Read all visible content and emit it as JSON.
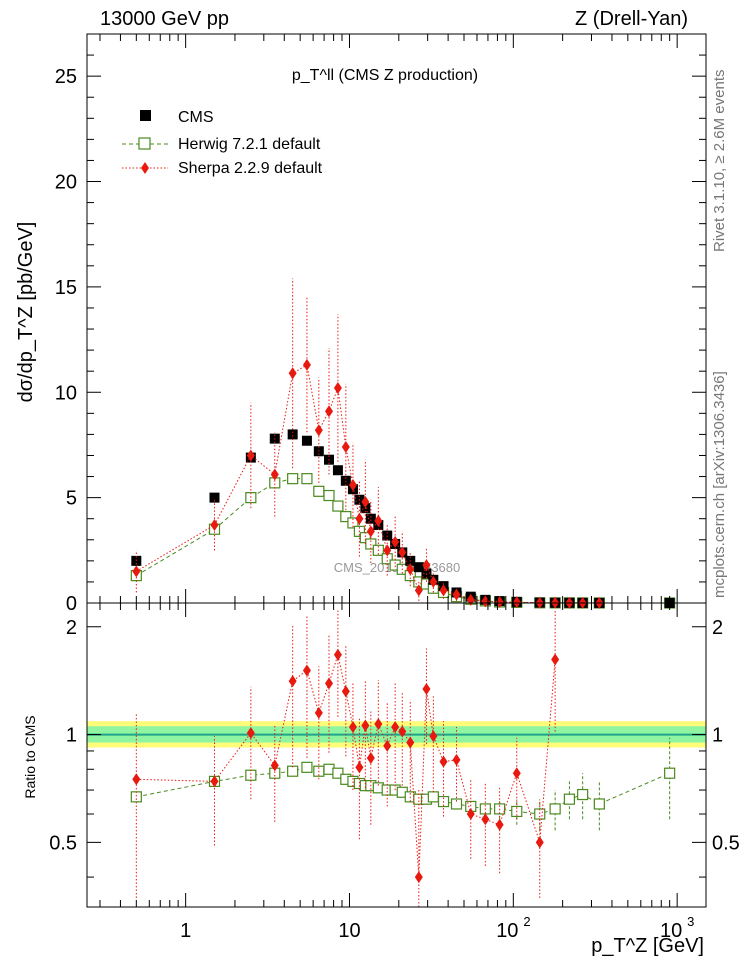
{
  "header": {
    "energy": "13000 GeV pp",
    "process": "Z (Drell-Yan)"
  },
  "side_text": {
    "rivet": "Rivet 3.1.10, ≥ 2.6M events",
    "mcplots": "mcplots.cern.ch [arXiv:1306.3436]"
  },
  "watermark": "CMS_2019_I1753680",
  "chart_data": [
    {
      "type": "scatter",
      "panel": "main",
      "title": "p_T^ll (CMS Z production)",
      "ylabel": "dσ/dp_T^Z [pb/GeV]",
      "xscale": "log",
      "xlim": [
        0.25,
        1500
      ],
      "ylim": [
        0,
        27
      ],
      "yticks": [
        0,
        5,
        10,
        15,
        20,
        25
      ],
      "legend_position": "top-left",
      "series": [
        {
          "name": "CMS",
          "marker": "filled-square",
          "color": "#000000",
          "x": [
            0.5,
            1.5,
            2.5,
            3.5,
            4.5,
            5.5,
            6.5,
            7.5,
            8.5,
            9.5,
            10.5,
            11.5,
            12.5,
            13.5,
            15,
            17,
            19,
            21,
            23.5,
            26.5,
            29.5,
            32.5,
            37.5,
            45,
            55,
            67.5,
            82.5,
            105,
            145,
            180,
            220,
            265,
            335,
            900
          ],
          "y": [
            2.0,
            5.0,
            6.9,
            7.8,
            8.0,
            7.7,
            7.2,
            6.8,
            6.3,
            5.8,
            5.4,
            4.9,
            4.5,
            4.0,
            3.7,
            3.2,
            2.8,
            2.4,
            2.0,
            1.7,
            1.4,
            1.1,
            0.8,
            0.5,
            0.3,
            0.15,
            0.09,
            0.05,
            0.02,
            0.01,
            0.01,
            0.005,
            0.003,
            0.001
          ]
        },
        {
          "name": "Herwig 7.2.1 default",
          "marker": "open-square",
          "line": "dashed",
          "color": "#4a8a1e",
          "x": [
            0.5,
            1.5,
            2.5,
            3.5,
            4.5,
            5.5,
            6.5,
            7.5,
            8.5,
            9.5,
            10.5,
            11.5,
            12.5,
            13.5,
            15,
            17,
            19,
            21,
            23.5,
            26.5,
            29.5,
            32.5,
            37.5,
            45,
            55,
            67.5,
            82.5,
            105,
            145,
            180,
            220,
            265,
            335,
            900
          ],
          "y": [
            1.3,
            3.5,
            5.0,
            5.7,
            5.9,
            5.9,
            5.3,
            5.1,
            4.6,
            4.1,
            3.8,
            3.4,
            3.1,
            2.8,
            2.5,
            2.1,
            1.8,
            1.6,
            1.3,
            1.0,
            0.9,
            0.7,
            0.5,
            0.3,
            0.18,
            0.1,
            0.05,
            0.03,
            0.01,
            0.006,
            0.005,
            0.003,
            0.002,
            0.0006
          ]
        },
        {
          "name": "Sherpa 2.2.9 default",
          "marker": "filled-diamond",
          "line": "dotted",
          "color": "#e8190f",
          "x": [
            0.5,
            1.5,
            2.5,
            3.5,
            4.5,
            5.5,
            6.5,
            7.5,
            8.5,
            9.5,
            10.5,
            11.5,
            12.5,
            13.5,
            15,
            17,
            19,
            21,
            23.5,
            26.5,
            29.5,
            32.5,
            37.5,
            45,
            55,
            67.5,
            82.5,
            105,
            145,
            180,
            220,
            265,
            335
          ],
          "y": [
            1.5,
            3.7,
            7.0,
            6.1,
            10.9,
            11.3,
            8.2,
            9.1,
            10.2,
            7.4,
            5.6,
            4.0,
            4.8,
            3.4,
            3.9,
            2.5,
            2.9,
            2.4,
            1.6,
            0.6,
            1.8,
            1.0,
            0.6,
            0.4,
            0.15,
            0.08,
            0.05,
            0.04,
            0.01,
            0.015,
            0.005,
            0.005,
            0.003
          ],
          "err": [
            1.0,
            1.2,
            2.5,
            2.0,
            4.5,
            3.2,
            2.5,
            3.0,
            3.5,
            3.0,
            2.0,
            1.8,
            2.0,
            1.5,
            1.6,
            1.2,
            1.2,
            1.0,
            0.8,
            0.5,
            0.8,
            0.5,
            0.4,
            0.3,
            0.1,
            0.05,
            0.04,
            0.03,
            0.01,
            0.01,
            0.005,
            0.005,
            0.003
          ]
        }
      ]
    },
    {
      "type": "scatter",
      "panel": "ratio",
      "ylabel": "Ratio to CMS",
      "xlabel": "p_T^Z [GeV]",
      "xscale": "log",
      "xlim": [
        0.25,
        1500
      ],
      "ylim": [
        0.33,
        2.33
      ],
      "yticks": [
        0.5,
        1,
        2
      ],
      "xticks": [
        1,
        10,
        100,
        1000
      ],
      "band_colors": {
        "inner": "#8ff5a0",
        "outer": "#fffc7a",
        "line": "#1ea58c"
      },
      "series": [
        {
          "name": "Herwig 7.2.1 default",
          "marker": "open-square",
          "line": "dashed",
          "color": "#4a8a1e",
          "x": [
            0.5,
            1.5,
            2.5,
            3.5,
            4.5,
            5.5,
            6.5,
            7.5,
            8.5,
            9.5,
            10.5,
            11.5,
            12.5,
            13.5,
            15,
            17,
            19,
            21,
            23.5,
            26.5,
            29.5,
            32.5,
            37.5,
            45,
            55,
            67.5,
            82.5,
            105,
            145,
            180,
            220,
            265,
            335,
            900
          ],
          "y": [
            0.67,
            0.74,
            0.77,
            0.78,
            0.79,
            0.81,
            0.79,
            0.8,
            0.78,
            0.75,
            0.74,
            0.73,
            0.72,
            0.72,
            0.71,
            0.7,
            0.7,
            0.69,
            0.67,
            0.66,
            0.66,
            0.67,
            0.65,
            0.64,
            0.63,
            0.62,
            0.62,
            0.61,
            0.6,
            0.62,
            0.66,
            0.68,
            0.64,
            0.78
          ],
          "err": [
            0.02,
            0.02,
            0.02,
            0.02,
            0.02,
            0.02,
            0.02,
            0.02,
            0.02,
            0.02,
            0.02,
            0.02,
            0.02,
            0.02,
            0.02,
            0.02,
            0.02,
            0.02,
            0.02,
            0.02,
            0.02,
            0.02,
            0.02,
            0.02,
            0.03,
            0.03,
            0.04,
            0.05,
            0.06,
            0.08,
            0.08,
            0.1,
            0.1,
            0.2
          ]
        },
        {
          "name": "Sherpa 2.2.9 default",
          "marker": "filled-diamond",
          "line": "dotted",
          "color": "#e8190f",
          "x": [
            0.5,
            1.5,
            2.5,
            3.5,
            4.5,
            5.5,
            6.5,
            7.5,
            8.5,
            9.5,
            10.5,
            11.5,
            12.5,
            13.5,
            15,
            17,
            19,
            21,
            23.5,
            26.5,
            29.5,
            32.5,
            37.5,
            45,
            55,
            67.5,
            82.5,
            105,
            145,
            180
          ],
          "y": [
            0.75,
            0.74,
            1.01,
            0.82,
            1.41,
            1.51,
            1.15,
            1.39,
            1.67,
            1.32,
            1.05,
            0.81,
            1.06,
            0.86,
            1.07,
            0.93,
            1.05,
            1.02,
            0.95,
            0.4,
            1.34,
            0.99,
            0.84,
            0.85,
            0.6,
            0.58,
            0.56,
            0.78,
            0.5,
            1.62
          ],
          "err": [
            0.4,
            0.25,
            0.35,
            0.25,
            0.6,
            0.65,
            0.4,
            0.5,
            0.55,
            0.45,
            0.35,
            0.3,
            0.35,
            0.3,
            0.35,
            0.3,
            0.35,
            0.3,
            0.3,
            0.3,
            0.4,
            0.3,
            0.25,
            0.2,
            0.15,
            0.15,
            0.15,
            0.2,
            0.15,
            0.6
          ]
        }
      ]
    }
  ]
}
